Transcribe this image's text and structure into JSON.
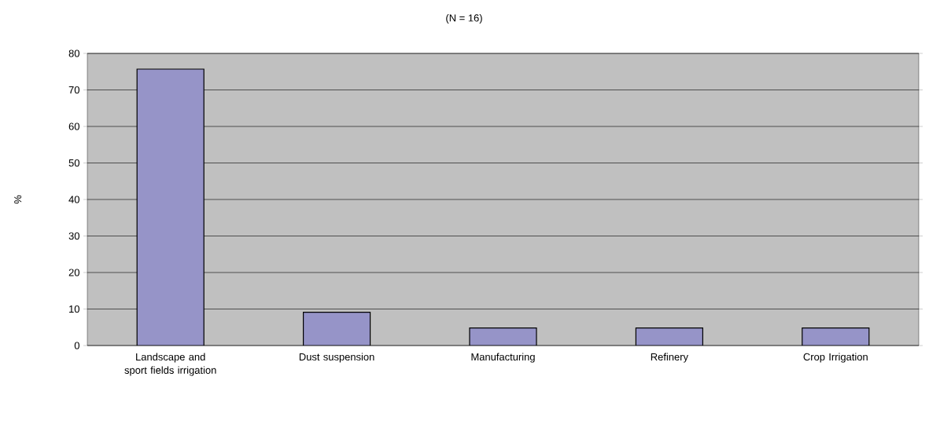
{
  "chart_data": {
    "type": "bar",
    "title": "(N = 16)",
    "ylabel": "%",
    "categories": [
      "Landscape and sport fields irrigation",
      "Dust suspension",
      "Manufacturing",
      "Refinery",
      "Crop Irrigation"
    ],
    "values": [
      75.7,
      9.1,
      4.8,
      4.8,
      4.8
    ],
    "color": "#9694c8",
    "ylim": [
      0,
      80
    ],
    "yticks": [
      0,
      10,
      20,
      30,
      40,
      50,
      60,
      70,
      80
    ],
    "grid": "y"
  }
}
